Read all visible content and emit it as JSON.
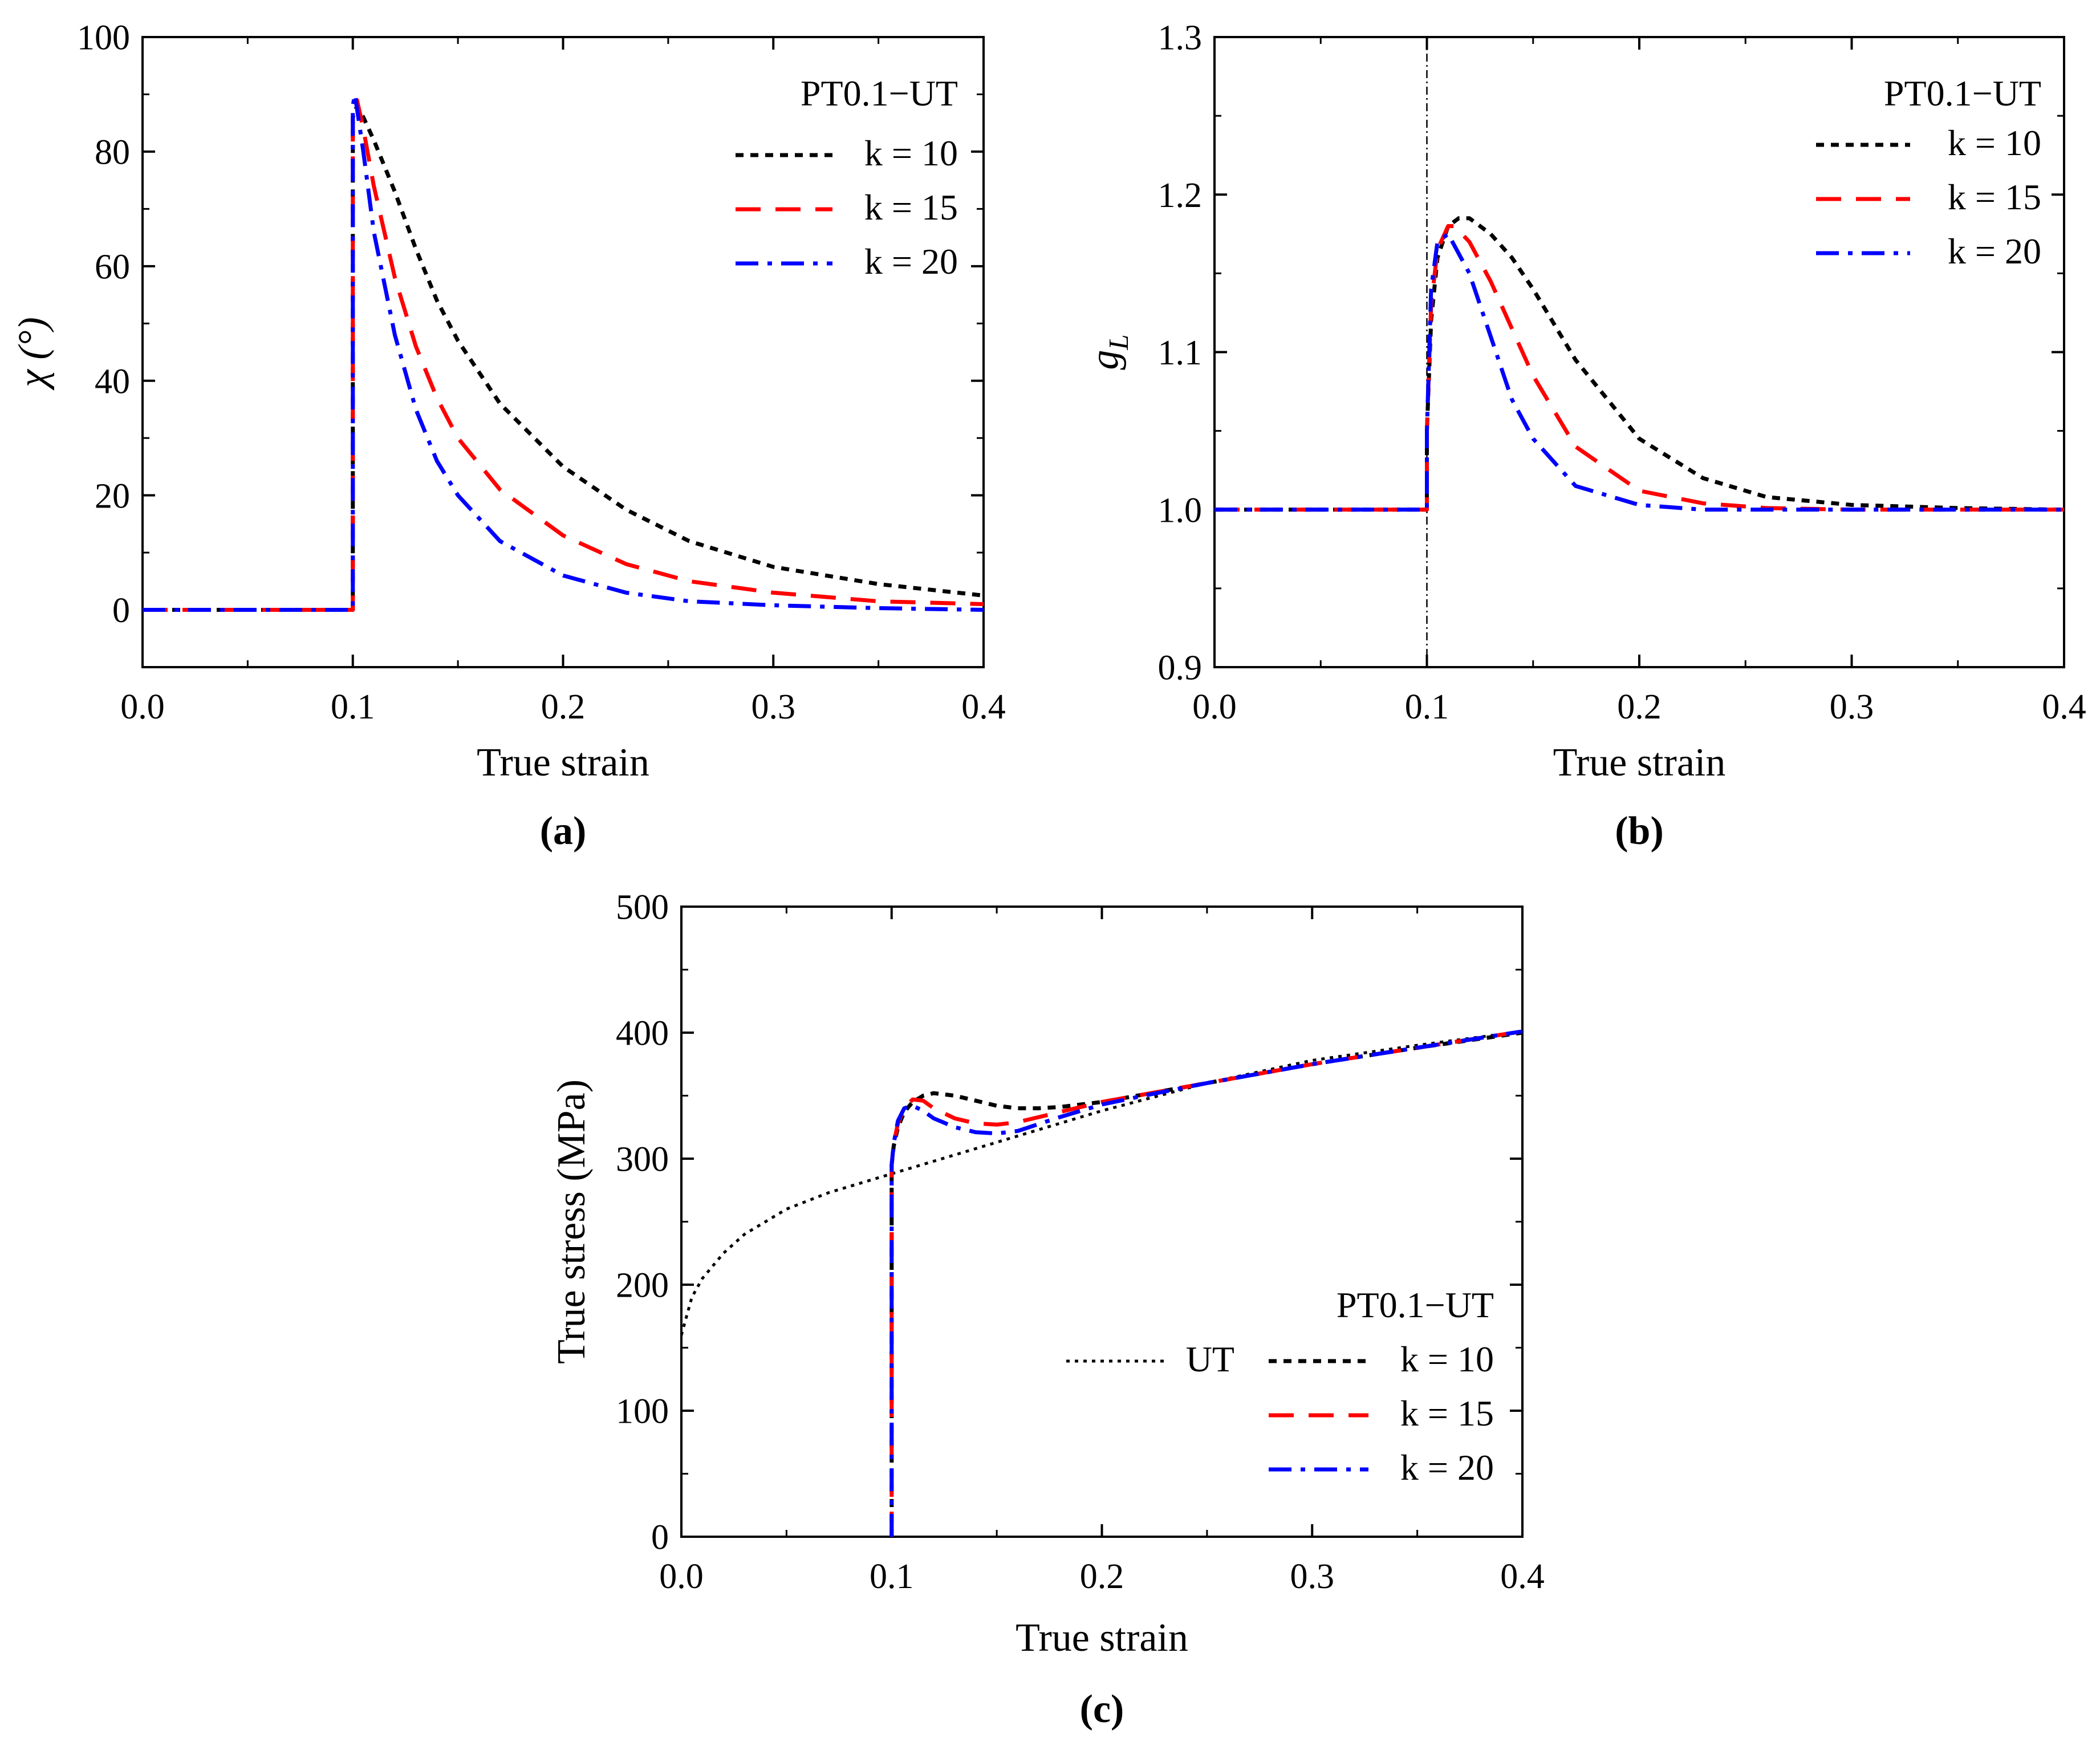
{
  "chart_data": [
    {
      "id": "a",
      "type": "line",
      "caption": "(a)",
      "xlabel": "True strain",
      "ylabel": "χ (°)",
      "xlim": [
        0.0,
        0.4
      ],
      "ylim": [
        -10,
        100
      ],
      "xticks": [
        "0.0",
        "0.1",
        "0.2",
        "0.3",
        "0.4"
      ],
      "yticks": [
        "0",
        "20",
        "40",
        "60",
        "80",
        "100"
      ],
      "legend_title": "PT0.1−UT",
      "legend_position": "top-right",
      "series": [
        {
          "name": "k = 10",
          "color": "#000000",
          "style": "dot",
          "x": [
            0,
            0.1,
            0.1,
            0.1,
            0.102,
            0.105,
            0.11,
            0.12,
            0.13,
            0.14,
            0.15,
            0.17,
            0.2,
            0.23,
            0.26,
            0.3,
            0.35,
            0.4
          ],
          "y": [
            0,
            0,
            40,
            86,
            88,
            86,
            82,
            73,
            63,
            54,
            47,
            36,
            25,
            17.5,
            12,
            7.5,
            4.5,
            2.5
          ]
        },
        {
          "name": "k = 15",
          "color": "#ff0000",
          "style": "dash",
          "x": [
            0,
            0.1,
            0.1,
            0.1,
            0.102,
            0.105,
            0.11,
            0.12,
            0.13,
            0.14,
            0.15,
            0.17,
            0.2,
            0.23,
            0.26,
            0.3,
            0.35,
            0.4
          ],
          "y": [
            0,
            0,
            40,
            87,
            89,
            84,
            74,
            58,
            46,
            37,
            30,
            21,
            13,
            8,
            5,
            3,
            1.5,
            1
          ]
        },
        {
          "name": "k = 20",
          "color": "#0000ff",
          "style": "dashdot",
          "x": [
            0,
            0.1,
            0.1,
            0.1,
            0.101,
            0.105,
            0.11,
            0.12,
            0.13,
            0.14,
            0.15,
            0.17,
            0.2,
            0.23,
            0.26,
            0.3,
            0.35,
            0.4
          ],
          "y": [
            0,
            0,
            40,
            88,
            90,
            80,
            66,
            48,
            35,
            26,
            20,
            12,
            6,
            3,
            1.5,
            0.8,
            0.3,
            0
          ]
        }
      ]
    },
    {
      "id": "b",
      "type": "line",
      "caption": "(b)",
      "xlabel": "True strain",
      "ylabel": "g",
      "ylabel_sub": "L",
      "xlim": [
        0.0,
        0.4
      ],
      "ylim": [
        0.9,
        1.3
      ],
      "xticks": [
        "0.0",
        "0.1",
        "0.2",
        "0.3",
        "0.4"
      ],
      "yticks": [
        "0.9",
        "1.0",
        "1.1",
        "1.2",
        "1.3"
      ],
      "vline": 0.1,
      "legend_title": "PT0.1−UT",
      "legend_position": "top-right",
      "series": [
        {
          "name": "k = 10",
          "color": "#000000",
          "style": "dot",
          "x": [
            0,
            0.1,
            0.1,
            0.102,
            0.105,
            0.11,
            0.115,
            0.12,
            0.13,
            0.14,
            0.15,
            0.17,
            0.2,
            0.23,
            0.26,
            0.3,
            0.35,
            0.4
          ],
          "y": [
            1.0,
            1.0,
            1.05,
            1.12,
            1.16,
            1.18,
            1.185,
            1.185,
            1.175,
            1.16,
            1.14,
            1.095,
            1.045,
            1.02,
            1.008,
            1.003,
            1.001,
            1.0
          ]
        },
        {
          "name": "k = 15",
          "color": "#ff0000",
          "style": "dash",
          "x": [
            0,
            0.1,
            0.1,
            0.102,
            0.105,
            0.11,
            0.113,
            0.12,
            0.13,
            0.14,
            0.15,
            0.17,
            0.2,
            0.23,
            0.26,
            0.3,
            0.35,
            0.4
          ],
          "y": [
            1.0,
            1.0,
            1.05,
            1.13,
            1.165,
            1.18,
            1.18,
            1.17,
            1.145,
            1.115,
            1.085,
            1.04,
            1.012,
            1.004,
            1.001,
            1.0,
            1.0,
            1.0
          ]
        },
        {
          "name": "k = 20",
          "color": "#0000ff",
          "style": "dashdot",
          "x": [
            0,
            0.1,
            0.1,
            0.102,
            0.105,
            0.11,
            0.12,
            0.13,
            0.14,
            0.15,
            0.17,
            0.2,
            0.23,
            0.26,
            0.3,
            0.35,
            0.4
          ],
          "y": [
            1.0,
            1.0,
            1.05,
            1.14,
            1.17,
            1.175,
            1.15,
            1.11,
            1.07,
            1.045,
            1.015,
            1.003,
            1.0,
            1.0,
            1.0,
            1.0,
            1.0
          ]
        }
      ]
    },
    {
      "id": "c",
      "type": "line",
      "caption": "(c)",
      "xlabel": "True strain",
      "ylabel": "True stress (MPa)",
      "xlim": [
        0.0,
        0.4
      ],
      "ylim": [
        0,
        500
      ],
      "xticks": [
        "0.0",
        "0.1",
        "0.2",
        "0.3",
        "0.4"
      ],
      "yticks": [
        "0",
        "100",
        "200",
        "300",
        "400",
        "500"
      ],
      "legend_title": "PT0.1−UT",
      "legend_position": "bottom-right",
      "series": [
        {
          "name": "UT",
          "color": "#000000",
          "style": "finedot",
          "x": [
            0,
            0.005,
            0.01,
            0.02,
            0.03,
            0.05,
            0.07,
            0.1,
            0.13,
            0.16,
            0.2,
            0.25,
            0.3,
            0.35,
            0.4
          ],
          "y": [
            160,
            190,
            205,
            225,
            240,
            260,
            273,
            288,
            303,
            318,
            338,
            360,
            378,
            390,
            401
          ]
        },
        {
          "name": "k = 10",
          "color": "#000000",
          "style": "dot",
          "x": [
            0.1,
            0.1,
            0.1,
            0.101,
            0.103,
            0.106,
            0.11,
            0.115,
            0.12,
            0.13,
            0.14,
            0.15,
            0.16,
            0.17,
            0.18,
            0.2,
            0.22,
            0.25,
            0.3,
            0.35,
            0.4
          ],
          "y": [
            0,
            150,
            295,
            310,
            325,
            337,
            345,
            350,
            352,
            350,
            346,
            342,
            340,
            340,
            341,
            345,
            351,
            360,
            375,
            388,
            400
          ]
        },
        {
          "name": "k = 15",
          "color": "#ff0000",
          "style": "dash",
          "x": [
            0.1,
            0.1,
            0.1,
            0.101,
            0.103,
            0.106,
            0.11,
            0.115,
            0.12,
            0.13,
            0.14,
            0.15,
            0.16,
            0.18,
            0.2,
            0.22,
            0.25,
            0.3,
            0.35,
            0.4
          ],
          "y": [
            0,
            150,
            295,
            312,
            328,
            340,
            347,
            346,
            340,
            332,
            328,
            327,
            329,
            337,
            345,
            351,
            360,
            375,
            388,
            401
          ]
        },
        {
          "name": "k = 20",
          "color": "#0000ff",
          "style": "dashdot",
          "x": [
            0.1,
            0.1,
            0.1,
            0.101,
            0.103,
            0.106,
            0.11,
            0.115,
            0.12,
            0.13,
            0.14,
            0.15,
            0.16,
            0.18,
            0.2,
            0.22,
            0.25,
            0.3,
            0.35,
            0.4
          ],
          "y": [
            0,
            150,
            295,
            312,
            330,
            340,
            342,
            338,
            332,
            325,
            321,
            320,
            322,
            333,
            343,
            350,
            360,
            375,
            388,
            401
          ]
        }
      ]
    }
  ]
}
